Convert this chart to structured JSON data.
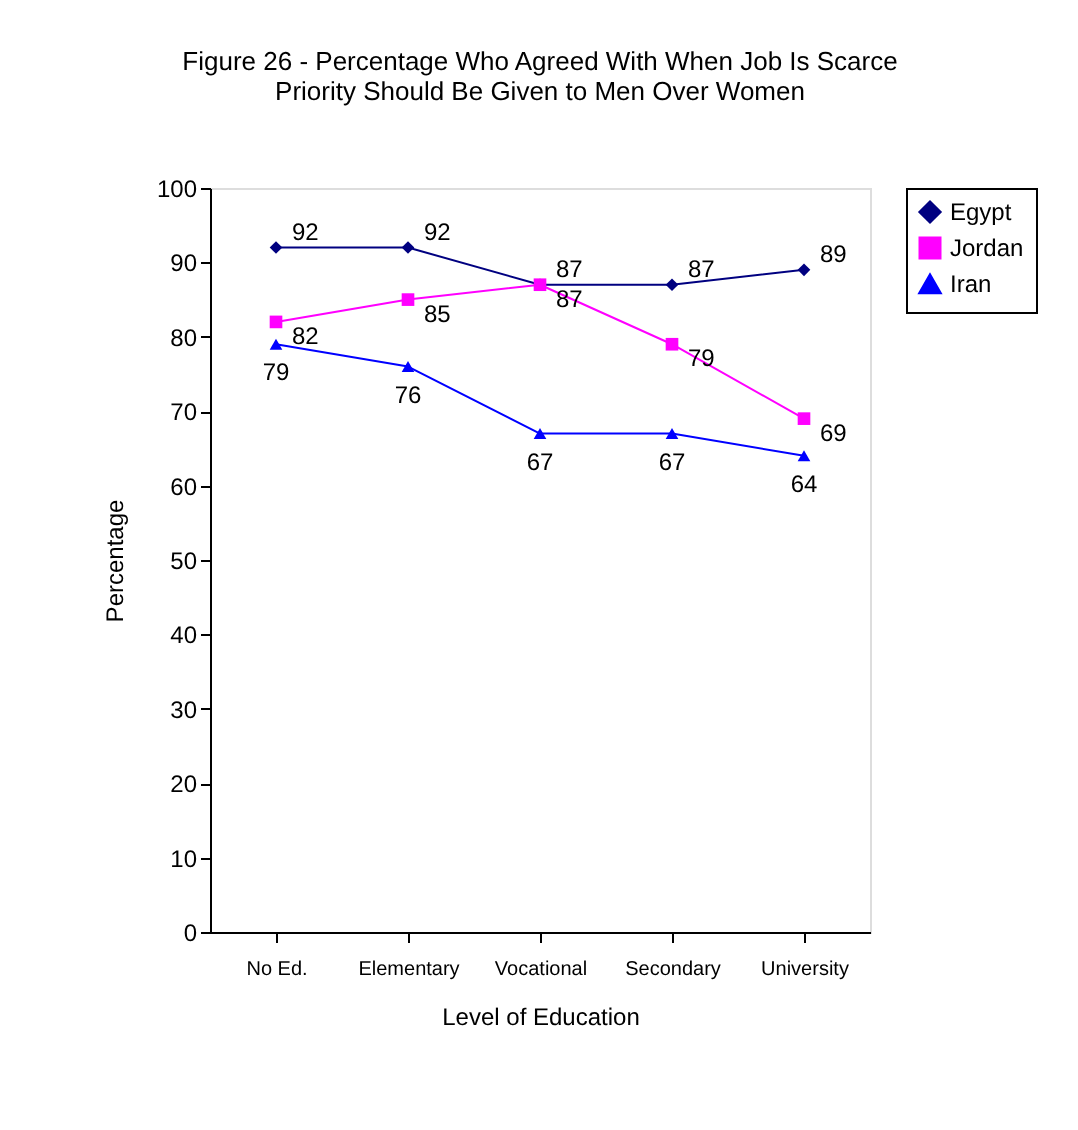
{
  "chart_data": {
    "type": "line",
    "title": [
      "Figure 26 - Percentage Who Agreed With When Job Is Scarce",
      "Priority Should Be Given to Men Over Women"
    ],
    "xlabel": "Level of Education",
    "ylabel": "Percentage",
    "categories": [
      "No Ed.",
      "Elementary",
      "Vocational",
      "Secondary",
      "University"
    ],
    "series": [
      {
        "name": "Egypt",
        "color": "#000080",
        "marker": "diamond",
        "values": [
          92,
          92,
          87,
          87,
          89
        ]
      },
      {
        "name": "Jordan",
        "color": "#ff00ff",
        "marker": "square",
        "values": [
          82,
          85,
          87,
          79,
          69
        ]
      },
      {
        "name": "Iran",
        "color": "#0000ff",
        "marker": "triangle",
        "values": [
          79,
          76,
          67,
          67,
          64
        ]
      }
    ],
    "ylim": [
      0,
      100
    ],
    "yticks": [
      0,
      10,
      20,
      30,
      40,
      50,
      60,
      70,
      80,
      90,
      100
    ],
    "grid": false,
    "legend": "right",
    "data_labels": true,
    "line_style": "solid"
  }
}
